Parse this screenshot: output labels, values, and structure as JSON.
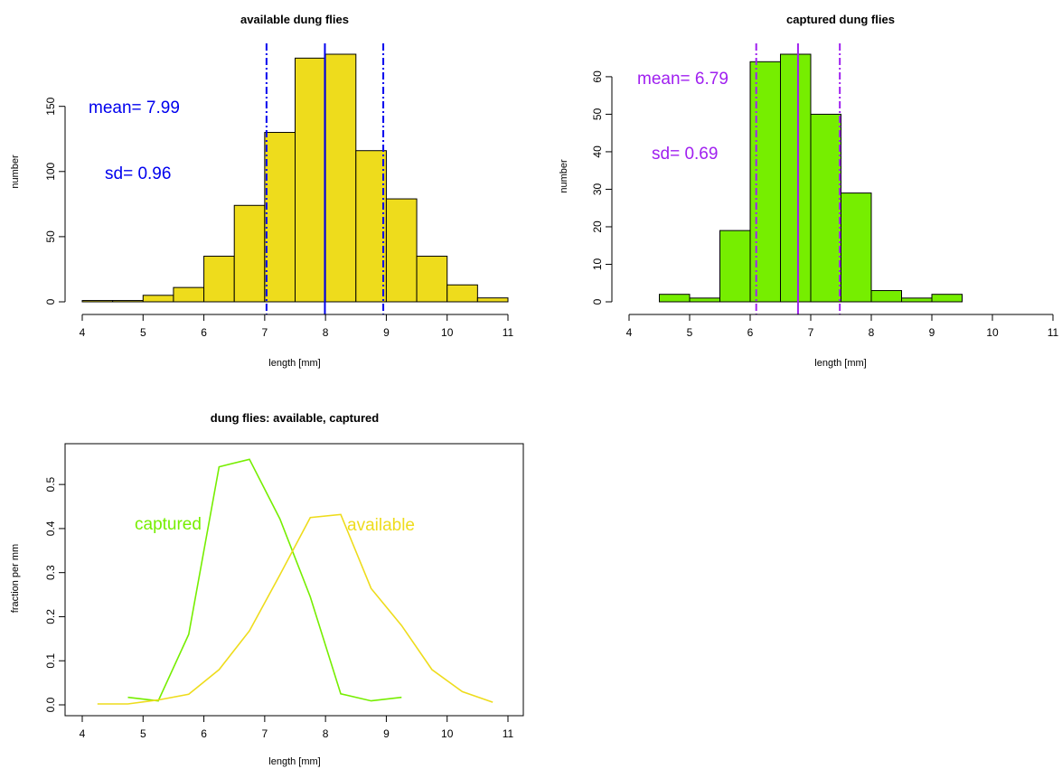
{
  "chart_data": [
    {
      "type": "bar",
      "title": "available dung flies",
      "xlabel": "length [mm]",
      "ylabel": "number",
      "xlim": [
        4,
        11
      ],
      "ylim": [
        0,
        190
      ],
      "xticks": [
        "4",
        "5",
        "6",
        "7",
        "8",
        "9",
        "10",
        "11"
      ],
      "yticks": [
        "0",
        "50",
        "100",
        "150"
      ],
      "bin_width": 0.5,
      "bins_start": [
        4.0,
        4.5,
        5.0,
        5.5,
        6.0,
        6.5,
        7.0,
        7.5,
        8.0,
        8.5,
        9.0,
        9.5,
        10.0,
        10.5
      ],
      "counts": [
        1,
        1,
        5,
        11,
        35,
        74,
        130,
        187,
        190,
        116,
        79,
        35,
        13,
        3
      ],
      "fill": "#eedc1c",
      "mean": 7.99,
      "sd": 0.96,
      "mean_label": "mean= 7.99",
      "sd_label": "sd= 0.96",
      "annotation_color": "#0000ee",
      "grid": false
    },
    {
      "type": "bar",
      "title": "captured dung flies",
      "xlabel": "length [mm]",
      "ylabel": "number",
      "xlim": [
        4,
        11
      ],
      "ylim": [
        0,
        66
      ],
      "xticks": [
        "4",
        "5",
        "6",
        "7",
        "8",
        "9",
        "10",
        "11"
      ],
      "yticks": [
        "0",
        "10",
        "20",
        "30",
        "40",
        "50",
        "60"
      ],
      "bin_width": 0.5,
      "bins_start": [
        4.5,
        5.0,
        5.5,
        6.0,
        6.5,
        7.0,
        7.5,
        8.0,
        8.5,
        9.0
      ],
      "counts": [
        2,
        1,
        19,
        64,
        66,
        50,
        29,
        3,
        1,
        2
      ],
      "fill": "#76ee00",
      "mean": 6.79,
      "sd": 0.69,
      "mean_label": "mean= 6.79",
      "sd_label": "sd= 0.69",
      "annotation_color": "#a020f0",
      "grid": false
    },
    {
      "type": "line",
      "title": "dung flies: available, captured",
      "xlabel": "length [mm]",
      "ylabel": "fraction per mm",
      "xlim": [
        4,
        11
      ],
      "ylim": [
        0,
        0.57
      ],
      "xticks": [
        "4",
        "5",
        "6",
        "7",
        "8",
        "9",
        "10",
        "11"
      ],
      "yticks": [
        "0.0",
        "0.1",
        "0.2",
        "0.3",
        "0.4",
        "0.5"
      ],
      "grid": false,
      "series": [
        {
          "name": "captured",
          "color": "#76ee00",
          "x": [
            4.75,
            5.25,
            5.75,
            6.25,
            6.75,
            7.25,
            7.75,
            8.25,
            8.75,
            9.25
          ],
          "y": [
            0.017,
            0.009,
            0.16,
            0.54,
            0.557,
            0.422,
            0.245,
            0.025,
            0.009,
            0.017
          ]
        },
        {
          "name": "available",
          "color": "#eedc1c",
          "x": [
            4.25,
            4.75,
            5.25,
            5.75,
            6.25,
            6.75,
            7.25,
            7.75,
            8.25,
            8.75,
            9.25,
            9.75,
            10.25,
            10.75
          ],
          "y": [
            0.002,
            0.002,
            0.011,
            0.024,
            0.08,
            0.168,
            0.295,
            0.425,
            0.432,
            0.264,
            0.18,
            0.08,
            0.03,
            0.006
          ]
        }
      ]
    }
  ]
}
